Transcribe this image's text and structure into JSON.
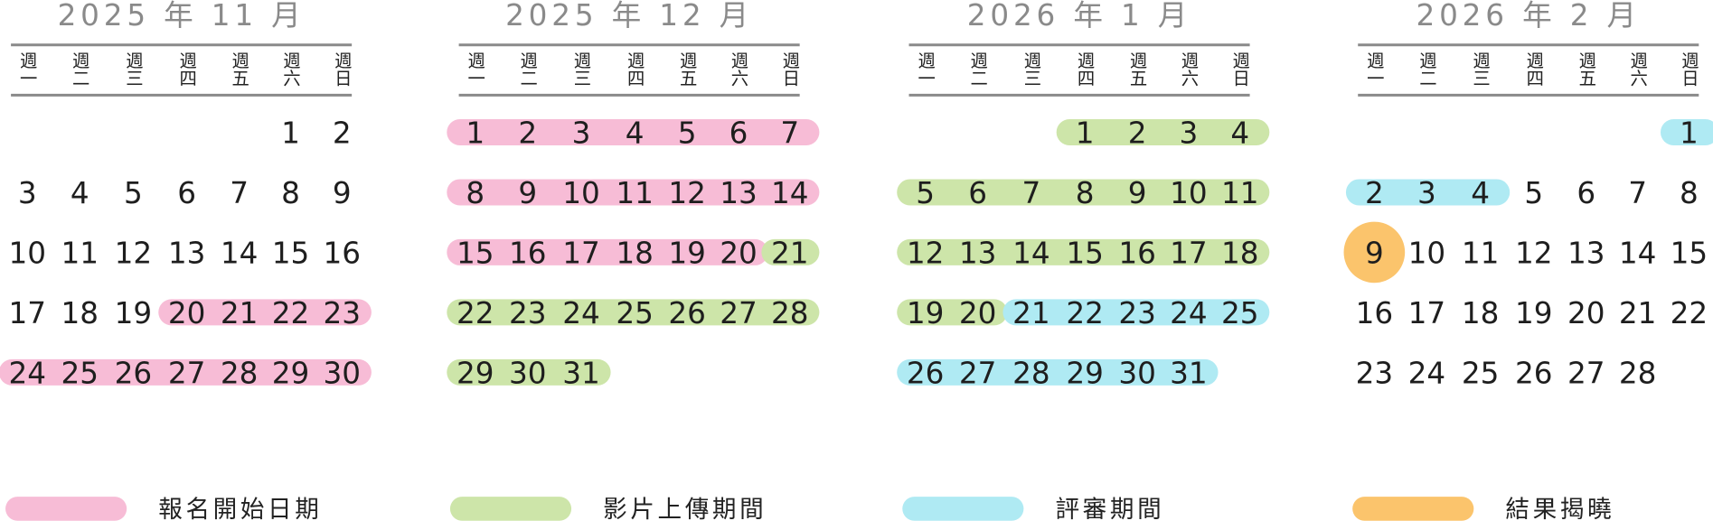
{
  "weekdays": [
    "週一",
    "週二",
    "週三",
    "週四",
    "週五",
    "週六",
    "週日"
  ],
  "saturday_color": "#1b7bc1",
  "sunday_color": "#c8102e",
  "months": [
    {
      "title": "2025 年 11 月",
      "weeks": [
        [
          null,
          null,
          null,
          null,
          null,
          1,
          2
        ],
        [
          3,
          4,
          5,
          6,
          7,
          8,
          9
        ],
        [
          10,
          11,
          12,
          13,
          14,
          15,
          16
        ],
        [
          17,
          18,
          19,
          20,
          21,
          22,
          23
        ],
        [
          24,
          25,
          26,
          27,
          28,
          29,
          30
        ]
      ]
    },
    {
      "title": "2025 年 12 月",
      "weeks": [
        [
          1,
          2,
          3,
          4,
          5,
          6,
          7
        ],
        [
          8,
          9,
          10,
          11,
          12,
          13,
          14
        ],
        [
          15,
          16,
          17,
          18,
          19,
          20,
          21
        ],
        [
          22,
          23,
          24,
          25,
          26,
          27,
          28
        ],
        [
          29,
          30,
          31,
          null,
          null,
          null,
          null
        ]
      ]
    },
    {
      "title": "2026 年 1 月",
      "weeks": [
        [
          null,
          null,
          null,
          1,
          2,
          3,
          4
        ],
        [
          5,
          6,
          7,
          8,
          9,
          10,
          11
        ],
        [
          12,
          13,
          14,
          15,
          16,
          17,
          18
        ],
        [
          19,
          20,
          21,
          22,
          23,
          24,
          25
        ],
        [
          26,
          27,
          28,
          29,
          30,
          31,
          null
        ]
      ]
    },
    {
      "title": "2026 年 2 月",
      "weeks": [
        [
          null,
          null,
          null,
          null,
          null,
          null,
          1
        ],
        [
          2,
          3,
          4,
          5,
          6,
          7,
          8
        ],
        [
          9,
          10,
          11,
          12,
          13,
          14,
          15
        ],
        [
          16,
          17,
          18,
          19,
          20,
          21,
          22
        ],
        [
          23,
          24,
          25,
          26,
          27,
          28,
          null
        ]
      ]
    }
  ],
  "legend": [
    {
      "label": "報名開始日期",
      "color": "#f7bcd6",
      "spans": [
        {
          "month": 0,
          "from": 20,
          "to": 30
        },
        {
          "month": 1,
          "from": 1,
          "to": 20
        }
      ]
    },
    {
      "label": "影片上傳期間",
      "color": "#cde5a9",
      "spans": [
        {
          "month": 1,
          "from": 21,
          "to": 31
        },
        {
          "month": 2,
          "from": 1,
          "to": 20
        }
      ]
    },
    {
      "label": "評審期間",
      "color": "#afeaf3",
      "spans": [
        {
          "month": 2,
          "from": 21,
          "to": 31
        },
        {
          "month": 3,
          "from": 1,
          "to": 4
        }
      ]
    },
    {
      "label": "結果揭曉",
      "color": "#fbc46c",
      "spans": [
        {
          "month": 3,
          "from": 9,
          "to": 9
        }
      ]
    }
  ]
}
